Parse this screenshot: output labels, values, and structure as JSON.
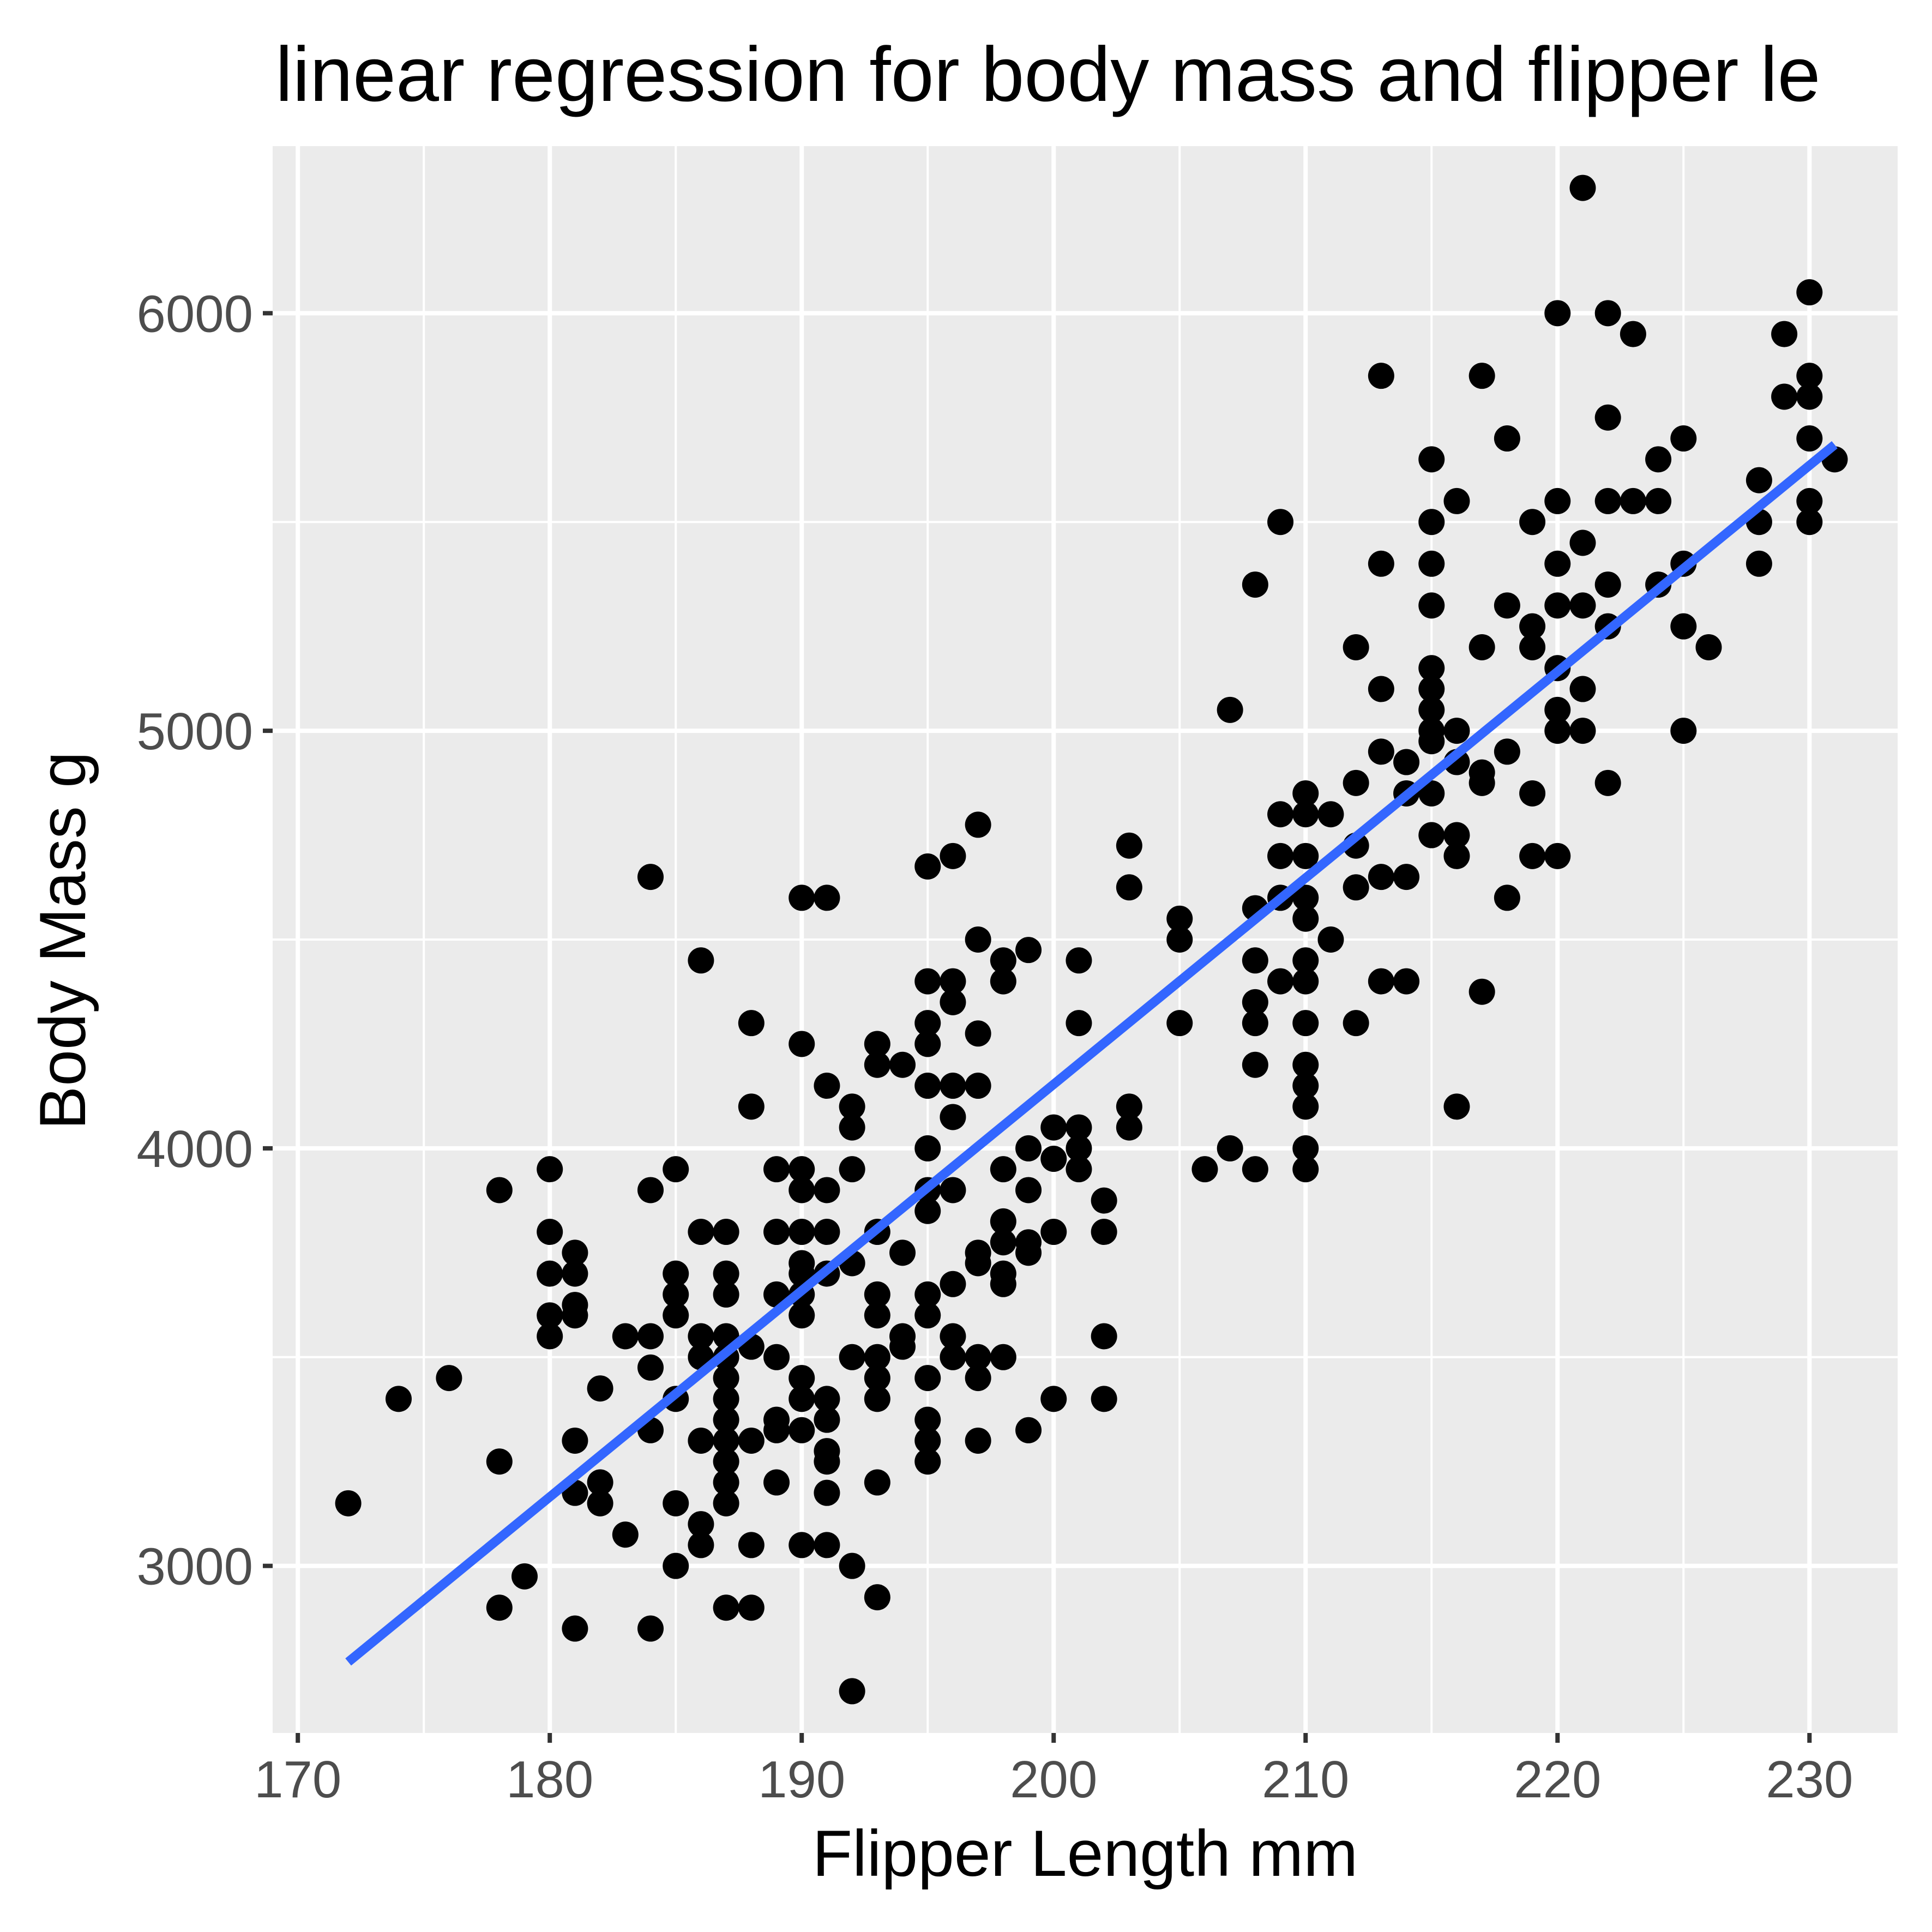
{
  "chart_data": {
    "type": "scatter",
    "title": "linear regression for body mass and flipper le",
    "xlabel": "Flipper Length mm",
    "ylabel": "Body Mass g",
    "xlim": [
      169,
      233.5
    ],
    "ylim": [
      2600,
      6400
    ],
    "x_ticks": [
      170,
      180,
      190,
      200,
      210,
      220,
      230
    ],
    "x_tick_labels": [
      "170",
      "180",
      "190",
      "200",
      "210",
      "220",
      "230"
    ],
    "y_ticks": [
      3000,
      4000,
      5000,
      6000
    ],
    "y_tick_labels": [
      "3000",
      "4000",
      "5000",
      "6000"
    ],
    "grid": true,
    "legend": "none",
    "colors": {
      "panel": "#EBEBEB",
      "grid": "#FFFFFF",
      "points": "#000000",
      "line": "#3366FF",
      "tick_text": "#4D4D4D"
    },
    "points": [
      [
        172,
        3150
      ],
      [
        174,
        3400
      ],
      [
        176,
        3450
      ],
      [
        178,
        3900
      ],
      [
        178,
        3250
      ],
      [
        178,
        2900
      ],
      [
        179,
        2975
      ],
      [
        180,
        3950
      ],
      [
        180,
        3800
      ],
      [
        180,
        3700
      ],
      [
        180,
        3600
      ],
      [
        180,
        3550
      ],
      [
        181,
        3750
      ],
      [
        181,
        3700
      ],
      [
        181,
        3625
      ],
      [
        181,
        3600
      ],
      [
        181,
        3300
      ],
      [
        181,
        3175
      ],
      [
        181,
        2850
      ],
      [
        182,
        3425
      ],
      [
        182,
        3200
      ],
      [
        182,
        3150
      ],
      [
        183,
        3550
      ],
      [
        183,
        3075
      ],
      [
        184,
        4650
      ],
      [
        184,
        3900
      ],
      [
        184,
        3550
      ],
      [
        184,
        3475
      ],
      [
        184,
        3325
      ],
      [
        184,
        2850
      ],
      [
        185,
        3950
      ],
      [
        185,
        3700
      ],
      [
        185,
        3650
      ],
      [
        185,
        3600
      ],
      [
        185,
        3400
      ],
      [
        185,
        3150
      ],
      [
        185,
        3000
      ],
      [
        186,
        4450
      ],
      [
        186,
        3800
      ],
      [
        186,
        3550
      ],
      [
        186,
        3500
      ],
      [
        186,
        3300
      ],
      [
        186,
        3100
      ],
      [
        186,
        3050
      ],
      [
        187,
        3800
      ],
      [
        187,
        3700
      ],
      [
        187,
        3650
      ],
      [
        187,
        3550
      ],
      [
        187,
        3500
      ],
      [
        187,
        3450
      ],
      [
        187,
        3400
      ],
      [
        187,
        3350
      ],
      [
        187,
        3300
      ],
      [
        187,
        3250
      ],
      [
        187,
        3200
      ],
      [
        187,
        3150
      ],
      [
        187,
        2900
      ],
      [
        188,
        4300
      ],
      [
        188,
        4100
      ],
      [
        188,
        3525
      ],
      [
        188,
        3300
      ],
      [
        188,
        3050
      ],
      [
        188,
        2900
      ],
      [
        189,
        3950
      ],
      [
        189,
        3800
      ],
      [
        189,
        3650
      ],
      [
        189,
        3500
      ],
      [
        189,
        3350
      ],
      [
        189,
        3325
      ],
      [
        189,
        3200
      ],
      [
        190,
        4600
      ],
      [
        190,
        4250
      ],
      [
        190,
        3950
      ],
      [
        190,
        3900
      ],
      [
        190,
        3800
      ],
      [
        190,
        3725
      ],
      [
        190,
        3700
      ],
      [
        190,
        3650
      ],
      [
        190,
        3600
      ],
      [
        190,
        3450
      ],
      [
        190,
        3400
      ],
      [
        190,
        3325
      ],
      [
        190,
        3050
      ],
      [
        191,
        4600
      ],
      [
        191,
        4150
      ],
      [
        191,
        3900
      ],
      [
        191,
        3800
      ],
      [
        191,
        3700
      ],
      [
        191,
        3400
      ],
      [
        191,
        3350
      ],
      [
        191,
        3275
      ],
      [
        191,
        3250
      ],
      [
        191,
        3175
      ],
      [
        191,
        3050
      ],
      [
        192,
        4100
      ],
      [
        192,
        4050
      ],
      [
        192,
        3950
      ],
      [
        192,
        3725
      ],
      [
        192,
        3500
      ],
      [
        192,
        3000
      ],
      [
        192,
        2700
      ],
      [
        193,
        4250
      ],
      [
        193,
        4200
      ],
      [
        193,
        3800
      ],
      [
        193,
        3650
      ],
      [
        193,
        3600
      ],
      [
        193,
        3500
      ],
      [
        193,
        3450
      ],
      [
        193,
        3400
      ],
      [
        193,
        3200
      ],
      [
        193,
        2925
      ],
      [
        194,
        4200
      ],
      [
        194,
        3750
      ],
      [
        194,
        3550
      ],
      [
        194,
        3525
      ],
      [
        195,
        4675
      ],
      [
        195,
        4400
      ],
      [
        195,
        4300
      ],
      [
        195,
        4250
      ],
      [
        195,
        4150
      ],
      [
        195,
        4000
      ],
      [
        195,
        3900
      ],
      [
        195,
        3850
      ],
      [
        195,
        3650
      ],
      [
        195,
        3600
      ],
      [
        195,
        3450
      ],
      [
        195,
        3350
      ],
      [
        195,
        3300
      ],
      [
        195,
        3250
      ],
      [
        196,
        4700
      ],
      [
        196,
        4400
      ],
      [
        196,
        4350
      ],
      [
        196,
        4150
      ],
      [
        196,
        4075
      ],
      [
        196,
        3900
      ],
      [
        196,
        3675
      ],
      [
        196,
        3550
      ],
      [
        196,
        3500
      ],
      [
        197,
        4775
      ],
      [
        197,
        4500
      ],
      [
        197,
        4275
      ],
      [
        197,
        4150
      ],
      [
        197,
        3750
      ],
      [
        197,
        3725
      ],
      [
        197,
        3500
      ],
      [
        197,
        3450
      ],
      [
        197,
        3300
      ],
      [
        198,
        4450
      ],
      [
        198,
        4400
      ],
      [
        198,
        3950
      ],
      [
        198,
        3825
      ],
      [
        198,
        3775
      ],
      [
        198,
        3700
      ],
      [
        198,
        3675
      ],
      [
        198,
        3500
      ],
      [
        199,
        4475
      ],
      [
        199,
        4000
      ],
      [
        199,
        3900
      ],
      [
        199,
        3775
      ],
      [
        199,
        3750
      ],
      [
        199,
        3325
      ],
      [
        200,
        4050
      ],
      [
        200,
        3975
      ],
      [
        200,
        3800
      ],
      [
        200,
        3400
      ],
      [
        201,
        4450
      ],
      [
        201,
        4300
      ],
      [
        201,
        4050
      ],
      [
        201,
        4000
      ],
      [
        201,
        3950
      ],
      [
        202,
        3875
      ],
      [
        202,
        3800
      ],
      [
        202,
        3550
      ],
      [
        202,
        3400
      ],
      [
        203,
        4725
      ],
      [
        203,
        4625
      ],
      [
        203,
        4100
      ],
      [
        203,
        4050
      ],
      [
        205,
        4550
      ],
      [
        205,
        4500
      ],
      [
        205,
        4300
      ],
      [
        206,
        3950
      ],
      [
        207,
        5050
      ],
      [
        207,
        4000
      ],
      [
        208,
        5350
      ],
      [
        208,
        4575
      ],
      [
        208,
        4450
      ],
      [
        208,
        4350
      ],
      [
        208,
        4300
      ],
      [
        208,
        4200
      ],
      [
        208,
        3950
      ],
      [
        209,
        5500
      ],
      [
        209,
        4800
      ],
      [
        209,
        4700
      ],
      [
        209,
        4600
      ],
      [
        209,
        4400
      ],
      [
        210,
        4850
      ],
      [
        210,
        4800
      ],
      [
        210,
        4700
      ],
      [
        210,
        4600
      ],
      [
        210,
        4550
      ],
      [
        210,
        4450
      ],
      [
        210,
        4400
      ],
      [
        210,
        4300
      ],
      [
        210,
        4200
      ],
      [
        210,
        4150
      ],
      [
        210,
        4100
      ],
      [
        210,
        4000
      ],
      [
        210,
        3950
      ],
      [
        211,
        4800
      ],
      [
        211,
        4500
      ],
      [
        212,
        5200
      ],
      [
        212,
        4875
      ],
      [
        212,
        4725
      ],
      [
        212,
        4625
      ],
      [
        212,
        4300
      ],
      [
        213,
        5850
      ],
      [
        213,
        5400
      ],
      [
        213,
        5100
      ],
      [
        213,
        4950
      ],
      [
        213,
        4650
      ],
      [
        213,
        4400
      ],
      [
        214,
        4925
      ],
      [
        214,
        4850
      ],
      [
        214,
        4650
      ],
      [
        214,
        4400
      ],
      [
        215,
        5650
      ],
      [
        215,
        5500
      ],
      [
        215,
        5400
      ],
      [
        215,
        5300
      ],
      [
        215,
        5150
      ],
      [
        215,
        5100
      ],
      [
        215,
        5050
      ],
      [
        215,
        5000
      ],
      [
        215,
        4975
      ],
      [
        215,
        4850
      ],
      [
        215,
        4750
      ],
      [
        216,
        5550
      ],
      [
        216,
        5000
      ],
      [
        216,
        4925
      ],
      [
        216,
        4750
      ],
      [
        216,
        4700
      ],
      [
        216,
        4100
      ],
      [
        217,
        5850
      ],
      [
        217,
        5200
      ],
      [
        217,
        4900
      ],
      [
        217,
        4875
      ],
      [
        217,
        4375
      ],
      [
        218,
        5700
      ],
      [
        218,
        5300
      ],
      [
        218,
        4950
      ],
      [
        218,
        4600
      ],
      [
        219,
        5500
      ],
      [
        219,
        5250
      ],
      [
        219,
        5200
      ],
      [
        219,
        4850
      ],
      [
        219,
        4700
      ],
      [
        220,
        6000
      ],
      [
        220,
        5550
      ],
      [
        220,
        5400
      ],
      [
        220,
        5300
      ],
      [
        220,
        5150
      ],
      [
        220,
        5050
      ],
      [
        220,
        5000
      ],
      [
        220,
        4700
      ],
      [
        221,
        6300
      ],
      [
        221,
        5450
      ],
      [
        221,
        5300
      ],
      [
        221,
        5100
      ],
      [
        221,
        5000
      ],
      [
        222,
        6000
      ],
      [
        222,
        5750
      ],
      [
        222,
        5550
      ],
      [
        222,
        5350
      ],
      [
        222,
        5250
      ],
      [
        222,
        4875
      ],
      [
        223,
        5950
      ],
      [
        223,
        5550
      ],
      [
        224,
        5650
      ],
      [
        224,
        5550
      ],
      [
        224,
        5350
      ],
      [
        225,
        5700
      ],
      [
        225,
        5400
      ],
      [
        225,
        5250
      ],
      [
        225,
        5000
      ],
      [
        226,
        5200
      ],
      [
        228,
        5600
      ],
      [
        228,
        5500
      ],
      [
        228,
        5400
      ],
      [
        229,
        5950
      ],
      [
        229,
        5800
      ],
      [
        230,
        6050
      ],
      [
        230,
        5850
      ],
      [
        230,
        5800
      ],
      [
        230,
        5700
      ],
      [
        230,
        5550
      ],
      [
        230,
        5500
      ],
      [
        231,
        5650
      ]
    ],
    "regression_line": {
      "x": [
        172,
        231
      ],
      "y": [
        2770,
        5685
      ]
    }
  }
}
